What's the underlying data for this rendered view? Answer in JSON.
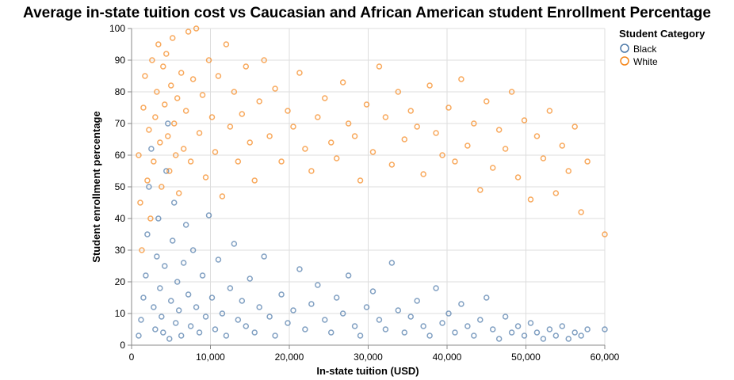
{
  "chart_data": {
    "type": "scatter",
    "title": "Average in-state tuition cost vs Caucasian and African American student Enrollment Percentage",
    "xlabel": "In-state tuition (USD)",
    "ylabel": "Student enrollment percentage",
    "xlim": [
      0,
      60000
    ],
    "ylim": [
      0,
      100
    ],
    "x_ticks": [
      0,
      10000,
      20000,
      30000,
      40000,
      50000,
      60000
    ],
    "x_tick_labels": [
      "0",
      "10,000",
      "20,000",
      "30,000",
      "40,000",
      "50,000",
      "60,000"
    ],
    "y_ticks": [
      0,
      10,
      20,
      30,
      40,
      50,
      60,
      70,
      80,
      90,
      100
    ],
    "y_tick_labels": [
      "0",
      "10",
      "20",
      "30",
      "40",
      "50",
      "60",
      "70",
      "80",
      "90",
      "100"
    ],
    "grid": true,
    "legend": {
      "title": "Student Category",
      "placement": "top-right",
      "entries": [
        "Black",
        "White"
      ]
    },
    "series": [
      {
        "name": "Black",
        "color": "#4c78a8",
        "marker": "hollow-circle",
        "points": [
          [
            900,
            3
          ],
          [
            1200,
            8
          ],
          [
            1500,
            15
          ],
          [
            1800,
            22
          ],
          [
            2000,
            35
          ],
          [
            2200,
            50
          ],
          [
            2500,
            62
          ],
          [
            2800,
            12
          ],
          [
            3000,
            5
          ],
          [
            3200,
            28
          ],
          [
            3400,
            40
          ],
          [
            3600,
            18
          ],
          [
            3800,
            9
          ],
          [
            4000,
            4
          ],
          [
            4200,
            25
          ],
          [
            4400,
            55
          ],
          [
            4600,
            70
          ],
          [
            4800,
            2
          ],
          [
            5000,
            14
          ],
          [
            5200,
            33
          ],
          [
            5400,
            45
          ],
          [
            5600,
            7
          ],
          [
            5800,
            20
          ],
          [
            6000,
            11
          ],
          [
            6300,
            3
          ],
          [
            6600,
            26
          ],
          [
            6900,
            38
          ],
          [
            7200,
            16
          ],
          [
            7500,
            6
          ],
          [
            7800,
            30
          ],
          [
            8200,
            12
          ],
          [
            8600,
            4
          ],
          [
            9000,
            22
          ],
          [
            9400,
            9
          ],
          [
            9800,
            41
          ],
          [
            10200,
            15
          ],
          [
            10600,
            5
          ],
          [
            11000,
            27
          ],
          [
            11500,
            10
          ],
          [
            12000,
            3
          ],
          [
            12500,
            18
          ],
          [
            13000,
            32
          ],
          [
            13500,
            8
          ],
          [
            14000,
            14
          ],
          [
            14500,
            6
          ],
          [
            15000,
            21
          ],
          [
            15600,
            4
          ],
          [
            16200,
            12
          ],
          [
            16800,
            28
          ],
          [
            17500,
            9
          ],
          [
            18200,
            3
          ],
          [
            19000,
            16
          ],
          [
            19800,
            7
          ],
          [
            20500,
            11
          ],
          [
            21300,
            24
          ],
          [
            22000,
            5
          ],
          [
            22800,
            13
          ],
          [
            23600,
            19
          ],
          [
            24500,
            8
          ],
          [
            25300,
            4
          ],
          [
            26000,
            15
          ],
          [
            26800,
            10
          ],
          [
            27500,
            22
          ],
          [
            28300,
            6
          ],
          [
            29000,
            3
          ],
          [
            29800,
            12
          ],
          [
            30600,
            17
          ],
          [
            31400,
            8
          ],
          [
            32200,
            5
          ],
          [
            33000,
            26
          ],
          [
            33800,
            11
          ],
          [
            34600,
            4
          ],
          [
            35400,
            9
          ],
          [
            36200,
            14
          ],
          [
            37000,
            6
          ],
          [
            37800,
            3
          ],
          [
            38600,
            18
          ],
          [
            39400,
            7
          ],
          [
            40200,
            10
          ],
          [
            41000,
            4
          ],
          [
            41800,
            13
          ],
          [
            42600,
            6
          ],
          [
            43400,
            3
          ],
          [
            44200,
            8
          ],
          [
            45000,
            15
          ],
          [
            45800,
            5
          ],
          [
            46600,
            2
          ],
          [
            47400,
            9
          ],
          [
            48200,
            4
          ],
          [
            49000,
            6
          ],
          [
            49800,
            3
          ],
          [
            50600,
            7
          ],
          [
            51400,
            4
          ],
          [
            52200,
            2
          ],
          [
            53000,
            5
          ],
          [
            53800,
            3
          ],
          [
            54600,
            6
          ],
          [
            55400,
            2
          ],
          [
            56200,
            4
          ],
          [
            57000,
            3
          ],
          [
            57800,
            5
          ],
          [
            60000,
            5
          ]
        ]
      },
      {
        "name": "White",
        "color": "#f58518",
        "marker": "hollow-circle",
        "points": [
          [
            900,
            60
          ],
          [
            1100,
            45
          ],
          [
            1300,
            30
          ],
          [
            1500,
            75
          ],
          [
            1700,
            85
          ],
          [
            2000,
            52
          ],
          [
            2200,
            68
          ],
          [
            2400,
            40
          ],
          [
            2600,
            90
          ],
          [
            2800,
            58
          ],
          [
            3000,
            72
          ],
          [
            3200,
            80
          ],
          [
            3400,
            95
          ],
          [
            3600,
            64
          ],
          [
            3800,
            50
          ],
          [
            4000,
            88
          ],
          [
            4200,
            76
          ],
          [
            4400,
            92
          ],
          [
            4600,
            66
          ],
          [
            4800,
            55
          ],
          [
            5000,
            82
          ],
          [
            5200,
            97
          ],
          [
            5400,
            70
          ],
          [
            5600,
            60
          ],
          [
            5800,
            78
          ],
          [
            6000,
            48
          ],
          [
            6300,
            86
          ],
          [
            6600,
            62
          ],
          [
            6900,
            74
          ],
          [
            7200,
            99
          ],
          [
            7500,
            58
          ],
          [
            7800,
            84
          ],
          [
            8200,
            100
          ],
          [
            8600,
            67
          ],
          [
            9000,
            79
          ],
          [
            9400,
            53
          ],
          [
            9800,
            90
          ],
          [
            10200,
            72
          ],
          [
            10600,
            61
          ],
          [
            11000,
            85
          ],
          [
            11500,
            47
          ],
          [
            12000,
            95
          ],
          [
            12500,
            69
          ],
          [
            13000,
            80
          ],
          [
            13500,
            58
          ],
          [
            14000,
            73
          ],
          [
            14500,
            88
          ],
          [
            15000,
            64
          ],
          [
            15600,
            52
          ],
          [
            16200,
            77
          ],
          [
            16800,
            90
          ],
          [
            17500,
            66
          ],
          [
            18200,
            81
          ],
          [
            19000,
            58
          ],
          [
            19800,
            74
          ],
          [
            20500,
            69
          ],
          [
            21300,
            86
          ],
          [
            22000,
            62
          ],
          [
            22800,
            55
          ],
          [
            23600,
            72
          ],
          [
            24500,
            78
          ],
          [
            25300,
            64
          ],
          [
            26000,
            59
          ],
          [
            26800,
            83
          ],
          [
            27500,
            70
          ],
          [
            28300,
            66
          ],
          [
            29000,
            52
          ],
          [
            29800,
            76
          ],
          [
            30600,
            61
          ],
          [
            31400,
            88
          ],
          [
            32200,
            72
          ],
          [
            33000,
            57
          ],
          [
            33800,
            80
          ],
          [
            34600,
            65
          ],
          [
            35400,
            74
          ],
          [
            36200,
            69
          ],
          [
            37000,
            54
          ],
          [
            37800,
            82
          ],
          [
            38600,
            67
          ],
          [
            39400,
            60
          ],
          [
            40200,
            75
          ],
          [
            41000,
            58
          ],
          [
            41800,
            84
          ],
          [
            42600,
            63
          ],
          [
            43400,
            70
          ],
          [
            44200,
            49
          ],
          [
            45000,
            77
          ],
          [
            45800,
            56
          ],
          [
            46600,
            68
          ],
          [
            47400,
            62
          ],
          [
            48200,
            80
          ],
          [
            49000,
            53
          ],
          [
            49800,
            71
          ],
          [
            50600,
            46
          ],
          [
            51400,
            66
          ],
          [
            52200,
            59
          ],
          [
            53000,
            74
          ],
          [
            53800,
            48
          ],
          [
            54600,
            63
          ],
          [
            55400,
            55
          ],
          [
            56200,
            69
          ],
          [
            57000,
            42
          ],
          [
            57800,
            58
          ],
          [
            60000,
            35
          ]
        ]
      }
    ]
  }
}
